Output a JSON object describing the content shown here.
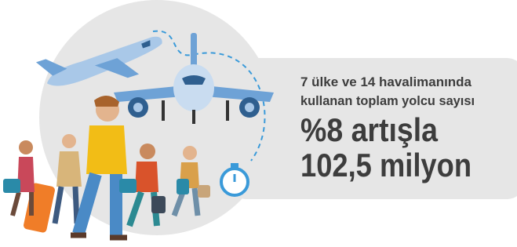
{
  "caption": {
    "lines": [
      "7 ülke ve 14 havalimanında",
      "kullanan toplam yolcu sayısı"
    ]
  },
  "headline": {
    "lines": [
      "%8 artışla",
      "102,5 milyon"
    ]
  }
}
